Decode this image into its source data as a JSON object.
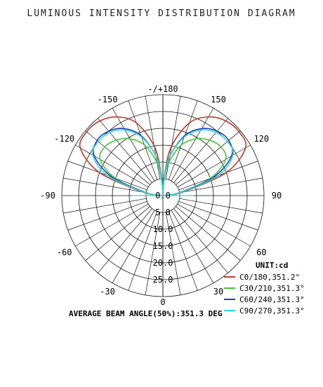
{
  "title": "LUMINOUS INTENSITY DISTRIBUTION DIAGRAM",
  "footer": "AVERAGE BEAM ANGLE(50%):351.3 DEG",
  "legend": {
    "unit": "UNIT:cd",
    "entries": [
      {
        "label": "C0/180,351.2°",
        "color": "#c0392b"
      },
      {
        "label": "C30/210,351.3°",
        "color": "#44c83a"
      },
      {
        "label": "C60/240,351.3°",
        "color": "#1f3fb5"
      },
      {
        "label": "C90/270,351.3°",
        "color": "#2fd6d6"
      }
    ]
  },
  "chart_data": {
    "type": "polar",
    "angle_labels": [
      "-/+180",
      "-150",
      "150",
      "-120",
      "120",
      "-90",
      "90",
      "-60",
      "60",
      "-30",
      "30",
      "0"
    ],
    "radial_labels": [
      "0.0",
      "5.0",
      "10.0",
      "15.0",
      "20.0",
      "25.0"
    ],
    "r_range": [
      0,
      30
    ],
    "series": [
      {
        "name": "C0/180,351.2°",
        "color": "#c0392b",
        "angles": [
          90,
          100,
          110,
          120,
          130,
          140,
          150,
          160,
          170,
          175,
          180
        ],
        "values": [
          0.3,
          6,
          20,
          28.3,
          29.5,
          29,
          27,
          23,
          15,
          7,
          1
        ]
      },
      {
        "name": "C30/210,351.3°",
        "color": "#44c83a",
        "angles": [
          90,
          100,
          110,
          120,
          130,
          140,
          150,
          160,
          170,
          175,
          180
        ],
        "values": [
          0.3,
          5,
          15,
          21.5,
          22.5,
          21.5,
          19.5,
          16,
          10,
          5,
          1
        ]
      },
      {
        "name": "C60/240,351.3°",
        "color": "#1f3fb5",
        "angles": [
          90,
          100,
          110,
          120,
          130,
          140,
          150,
          160,
          170,
          175,
          180
        ],
        "values": [
          0.3,
          5,
          16,
          23.5,
          25.5,
          25,
          23,
          19,
          12,
          6,
          1
        ]
      },
      {
        "name": "C90/270,351.3°",
        "color": "#2fd6d6",
        "angles": [
          90,
          100,
          110,
          120,
          130,
          140,
          150,
          160,
          170,
          175,
          180
        ],
        "values": [
          0.3,
          5.5,
          17.5,
          24,
          25,
          24.5,
          22.5,
          18.5,
          12,
          6,
          1
        ]
      }
    ]
  }
}
